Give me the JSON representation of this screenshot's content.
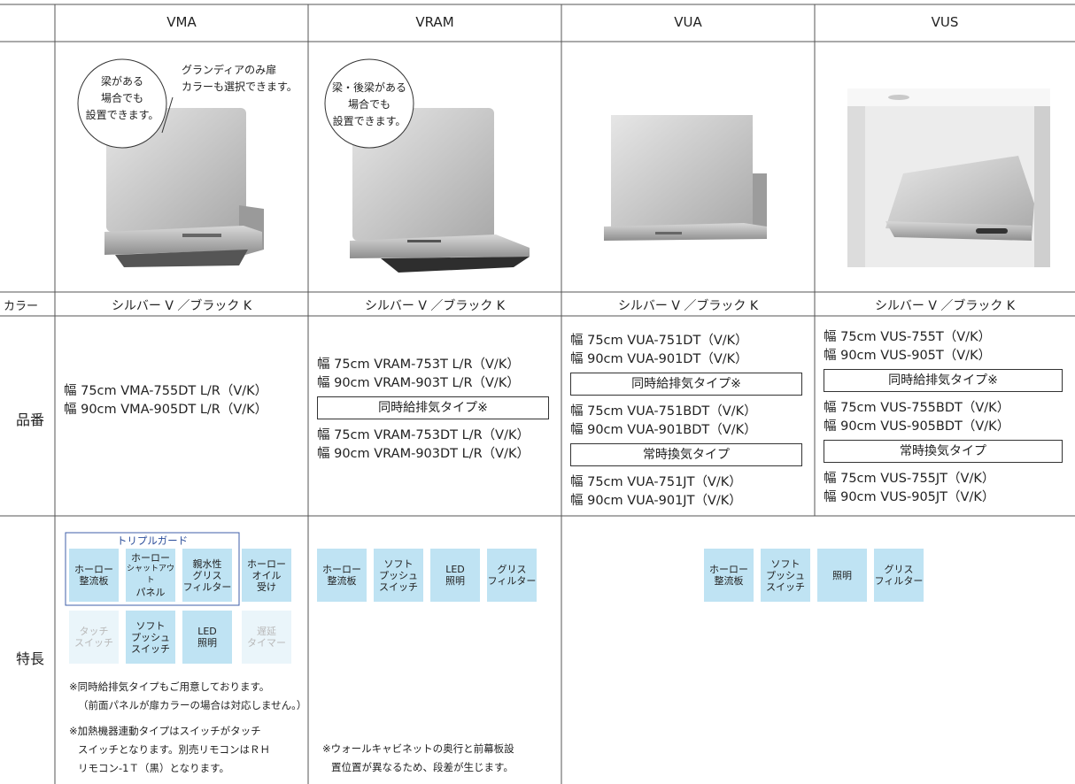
{
  "header": {
    "columns": [
      "VMA",
      "VRAM",
      "VUA",
      "VUS"
    ]
  },
  "row_labels": {
    "color": "カラー",
    "models": "品番",
    "features": "特長"
  },
  "images": [
    {
      "callouts": [
        [
          "梁がある",
          "場合でも",
          "設置できます。"
        ],
        [
          "グランディアのみ扉",
          "カラーも選択できます。"
        ]
      ]
    },
    {
      "callouts": [
        [
          "梁・後梁がある",
          "場合でも",
          "設置できます。"
        ]
      ]
    }
  ],
  "colors": [
    "シルバー V ／ブラック K",
    "シルバー V ／ブラック K",
    "シルバー V ／ブラック K",
    "シルバー V ／ブラック K"
  ],
  "models": [
    [
      {
        "lines": [
          "幅 75cm  VMA-755DT L/R（V/K）",
          "幅 90cm  VMA-905DT L/R（V/K）"
        ]
      }
    ],
    [
      {
        "lines": [
          "幅 75cm  VRAM-753T L/R（V/K）",
          "幅 90cm  VRAM-903T L/R（V/K）"
        ]
      },
      {
        "heading": "同時給排気タイプ※",
        "lines": [
          "幅 75cm  VRAM-753DT L/R（V/K）",
          "幅 90cm  VRAM-903DT L/R（V/K）"
        ]
      }
    ],
    [
      {
        "lines": [
          "幅 75cm  VUA-751DT（V/K）",
          "幅 90cm  VUA-901DT（V/K）"
        ]
      },
      {
        "heading": "同時給排気タイプ※",
        "lines": [
          "幅 75cm  VUA-751BDT（V/K）",
          "幅 90cm  VUA-901BDT（V/K）"
        ]
      },
      {
        "heading": "常時換気タイプ",
        "lines": [
          "幅 75cm    VUA-751JT（V/K）",
          "幅 90cm    VUA-901JT（V/K）"
        ]
      }
    ],
    [
      {
        "lines": [
          "幅 75cm    VUS-755T（V/K）",
          "幅 90cm    VUS-905T（V/K）"
        ]
      },
      {
        "heading": "同時給排気タイプ※",
        "lines": [
          "幅 75cm    VUS-755BDT（V/K）",
          "幅 90cm    VUS-905BDT（V/K）"
        ]
      },
      {
        "heading": "常時換気タイプ",
        "lines": [
          "幅 75cm    VUS-755JT（V/K）",
          "幅 90cm    VUS-905JT（V/K）"
        ]
      }
    ]
  ],
  "features": [
    {
      "group_label": "トリプルガード",
      "rows": [
        [
          {
            "lines": [
              "ホーロー",
              "整流板"
            ],
            "active": true
          },
          {
            "lines": [
              "ホーロー",
              "シャットアウト",
              "パネル"
            ],
            "active": true
          },
          {
            "lines": [
              "親水性",
              "グリス",
              "フィルター"
            ],
            "active": true
          },
          {
            "lines": [
              "ホーロー",
              "オイル",
              "受け"
            ],
            "active": true
          }
        ],
        [
          {
            "lines": [
              "タッチ",
              "スイッチ"
            ],
            "active": false
          },
          {
            "lines": [
              "ソフト",
              "プッシュ",
              "スイッチ"
            ],
            "active": true
          },
          {
            "lines": [
              "LED",
              "照明"
            ],
            "active": true
          },
          {
            "lines": [
              "遅延",
              "タイマー"
            ],
            "active": false
          }
        ]
      ],
      "notes": [
        [
          "※同時給排気タイプもご用意しております。",
          "（前面パネルが扉カラーの場合は対応しません。）"
        ],
        [
          "※加熱機器連動タイプはスイッチがタッチ",
          "スイッチとなります。別売リモコンはＲＨ",
          "リモコン-1Ｔ（黒）となります。"
        ]
      ]
    },
    {
      "rows": [
        [
          {
            "lines": [
              "ホーロー",
              "整流板"
            ],
            "active": true
          },
          {
            "lines": [
              "ソフト",
              "プッシュ",
              "スイッチ"
            ],
            "active": true
          },
          {
            "lines": [
              "LED",
              "照明"
            ],
            "active": true
          },
          {
            "lines": [
              "グリス",
              "フィルター"
            ],
            "active": true
          }
        ]
      ],
      "notes": [
        [
          "※ウォールキャビネットの奥行と前幕板設",
          "置位置が異なるため、段差が生じます。"
        ]
      ]
    },
    {
      "rows": [
        [
          {
            "lines": [
              "ホーロー",
              "整流板"
            ],
            "active": true
          },
          {
            "lines": [
              "ソフト",
              "プッシュ",
              "スイッチ"
            ],
            "active": true
          },
          {
            "lines": [
              "照明"
            ],
            "active": true
          },
          {
            "lines": [
              "グリス",
              "フィルター"
            ],
            "active": true
          }
        ]
      ]
    }
  ]
}
